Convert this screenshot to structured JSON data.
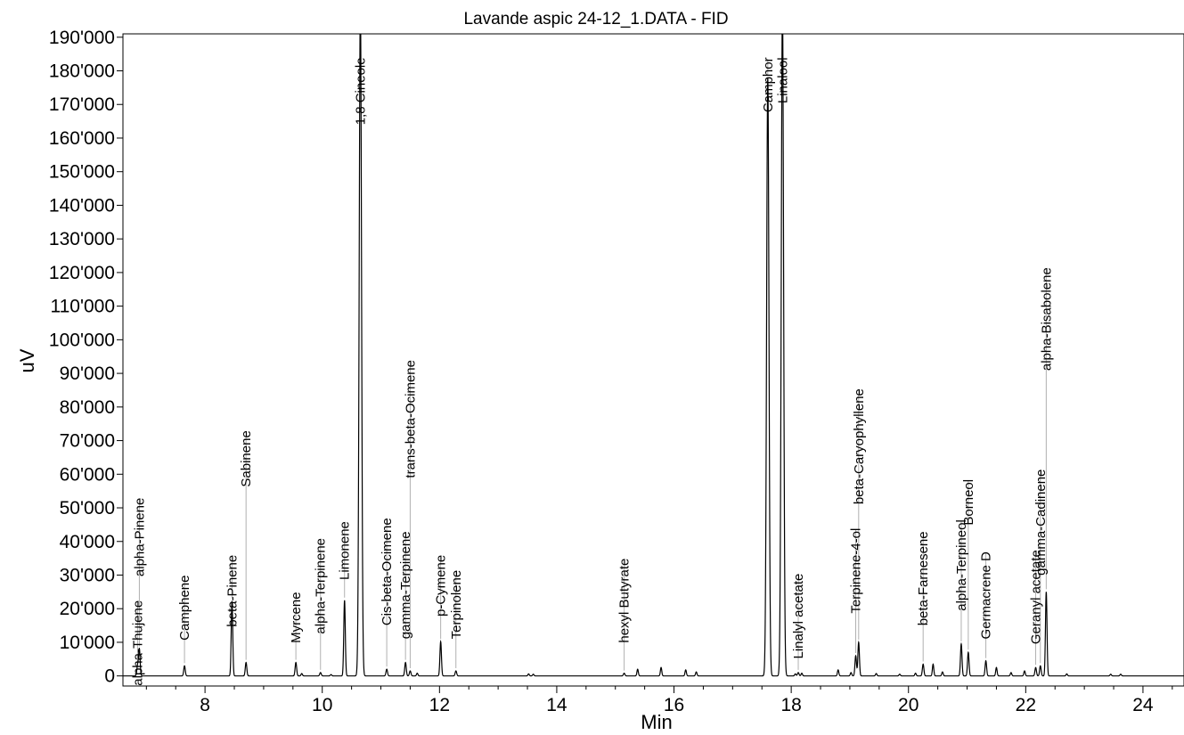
{
  "chart_data": {
    "type": "line",
    "title": "Lavande aspic 24-12_1.DATA - FID",
    "xlabel": "Min",
    "ylabel": "uV",
    "xlim": [
      6.6,
      24.7
    ],
    "ylim": [
      -3000,
      191000
    ],
    "x_ticks": [
      8,
      10,
      12,
      14,
      16,
      18,
      20,
      22,
      24
    ],
    "x_tick_labels": [
      "8",
      "10",
      "12",
      "14",
      "16",
      "18",
      "20",
      "22",
      "24"
    ],
    "y_ticks": [
      0,
      10000,
      20000,
      30000,
      40000,
      50000,
      60000,
      70000,
      80000,
      90000,
      100000,
      110000,
      120000,
      130000,
      140000,
      150000,
      160000,
      170000,
      180000,
      190000
    ],
    "y_tick_labels": [
      "0",
      "10'000",
      "20'000",
      "30'000",
      "40'000",
      "50'000",
      "60'000",
      "70'000",
      "80'000",
      "90'000",
      "100'000",
      "110'000",
      "120'000",
      "130'000",
      "140'000",
      "150'000",
      "160'000",
      "170'000",
      "180'000",
      "190'000"
    ],
    "grid": false,
    "line_color": "#000000",
    "peaks": [
      {
        "name": "alpha-Thujene",
        "rt": 6.85,
        "height": 3000,
        "label_top": 22500
      },
      {
        "name": "alpha-Pinene",
        "rt": 6.88,
        "height": 8000,
        "label_top": 53000
      },
      {
        "name": "Camphene",
        "rt": 7.65,
        "height": 3000,
        "label_top": 30000
      },
      {
        "name": "beta-Pinene",
        "rt": 8.46,
        "height": 22300,
        "label_top": 36000
      },
      {
        "name": "Sabinene",
        "rt": 8.7,
        "height": 4000,
        "label_top": 73000
      },
      {
        "name": "Myrcene",
        "rt": 9.55,
        "height": 4000,
        "label_top": 25000
      },
      {
        "name": "alpha-Terpinene",
        "rt": 9.97,
        "height": 1000,
        "label_top": 41000
      },
      {
        "name": "Limonene",
        "rt": 10.38,
        "height": 22500,
        "label_top": 46000
      },
      {
        "name": "1,8 Cineole",
        "rt": 10.65,
        "height": 200000,
        "label_top": 184000
      },
      {
        "name": "Cis-beta-Ocimene",
        "rt": 11.1,
        "height": 2000,
        "label_top": 47000
      },
      {
        "name": "gamma-Terpinene",
        "rt": 11.42,
        "height": 4000,
        "label_top": 43000
      },
      {
        "name": "trans-beta-Ocimene",
        "rt": 11.5,
        "height": 1500,
        "label_top": 94000
      },
      {
        "name": "p-Cymene",
        "rt": 12.02,
        "height": 10200,
        "label_top": 36000
      },
      {
        "name": "Terpinolene",
        "rt": 12.28,
        "height": 1500,
        "label_top": 31500
      },
      {
        "name": "hexyl Butyrate",
        "rt": 15.15,
        "height": 800,
        "label_top": 35000
      },
      {
        "name": "Camphor",
        "rt": 17.6,
        "height": 178000,
        "label_top": 184000
      },
      {
        "name": "Linalool",
        "rt": 17.85,
        "height": 200000,
        "label_top": 184000
      },
      {
        "name": "Linalyl acetate",
        "rt": 18.12,
        "height": 1000,
        "label_top": 30500
      },
      {
        "name": "Terpinene-4-ol",
        "rt": 19.1,
        "height": 6000,
        "label_top": 44000
      },
      {
        "name": "beta-Caryophyllene",
        "rt": 19.15,
        "height": 10000,
        "label_top": 85500
      },
      {
        "name": "beta-Farnesene",
        "rt": 20.25,
        "height": 3500,
        "label_top": 43000
      },
      {
        "name": "alpha-Terpineol",
        "rt": 20.9,
        "height": 9500,
        "label_top": 46500
      },
      {
        "name": "Borneol",
        "rt": 21.02,
        "height": 7000,
        "label_top": 58500
      },
      {
        "name": "Germacrene D",
        "rt": 21.32,
        "height": 4500,
        "label_top": 37000
      },
      {
        "name": "Geranyl acetate",
        "rt": 22.17,
        "height": 2500,
        "label_top": 37500
      },
      {
        "name": "gamma-Cadinene",
        "rt": 22.25,
        "height": 3000,
        "label_top": 61500
      },
      {
        "name": "alpha-Bisabolene",
        "rt": 22.35,
        "height": 25000,
        "label_top": 121500
      }
    ],
    "minor_peaks": [
      {
        "rt": 9.65,
        "height": 700
      },
      {
        "rt": 10.15,
        "height": 400
      },
      {
        "rt": 11.62,
        "height": 800
      },
      {
        "rt": 13.52,
        "height": 600
      },
      {
        "rt": 13.6,
        "height": 500
      },
      {
        "rt": 15.38,
        "height": 2000
      },
      {
        "rt": 15.78,
        "height": 2500
      },
      {
        "rt": 16.2,
        "height": 1800
      },
      {
        "rt": 16.38,
        "height": 1200
      },
      {
        "rt": 18.07,
        "height": 600
      },
      {
        "rt": 18.18,
        "height": 800
      },
      {
        "rt": 18.8,
        "height": 1800
      },
      {
        "rt": 19.02,
        "height": 1000
      },
      {
        "rt": 19.45,
        "height": 700
      },
      {
        "rt": 19.85,
        "height": 500
      },
      {
        "rt": 20.12,
        "height": 800
      },
      {
        "rt": 20.42,
        "height": 3500
      },
      {
        "rt": 20.58,
        "height": 1200
      },
      {
        "rt": 21.5,
        "height": 2500
      },
      {
        "rt": 21.75,
        "height": 1000
      },
      {
        "rt": 21.98,
        "height": 1500
      },
      {
        "rt": 22.7,
        "height": 600
      },
      {
        "rt": 23.45,
        "height": 500
      },
      {
        "rt": 23.62,
        "height": 500
      }
    ]
  }
}
